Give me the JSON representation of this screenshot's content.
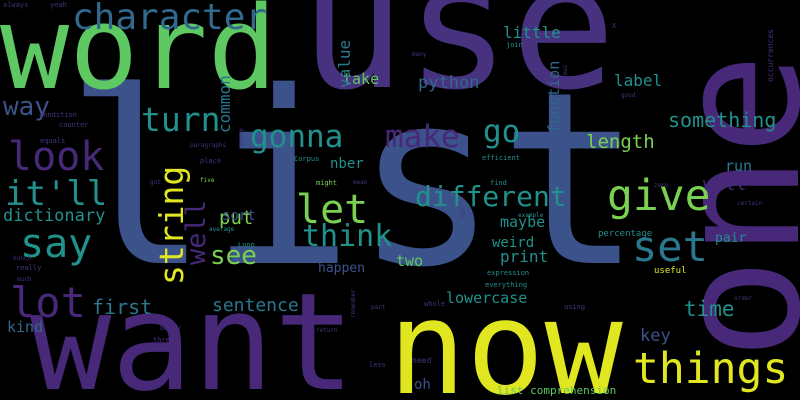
{
  "background_color": "#000000",
  "palette": {
    "dark_purple": "#46327e",
    "purple": "#482878",
    "blue": "#3b528b",
    "steel": "#31688e",
    "teal": "#21918c",
    "sea_green": "#2a788e",
    "green": "#5ec962",
    "lime": "#7ad151",
    "yellow": "#e0e620"
  },
  "words": {
    "use": "use",
    "list": "list",
    "word": "word",
    "one": "one",
    "want": "want",
    "now": "now",
    "character": "character",
    "look": "look",
    "say": "say",
    "lot": "lot",
    "things": "things",
    "give": "give",
    "set": "set",
    "let": "let",
    "think": "think",
    "gonna": "gonna",
    "make": "make",
    "go": "go",
    "turn": "turn",
    "way": "way",
    "string": "string",
    "well": "well",
    "see": "see",
    "it_ll": "it'll",
    "different": "different",
    "dictionary": "dictionary",
    "put": "put",
    "sort": "sort",
    "first": "first",
    "sentence": "sentence",
    "kind": "kind",
    "time": "time",
    "key": "key",
    "little": "little",
    "python": "python",
    "label": "label",
    "length": "length",
    "something": "something",
    "take": "take",
    "common": "common",
    "value": "value",
    "function": "function",
    "will": "will",
    "run": "run",
    "pair": "pair",
    "maybe": "maybe",
    "weird": "weird",
    "print": "print",
    "two": "two",
    "happen": "happen",
    "lowercase": "lowercase",
    "oh": "oh",
    "list_comprehension": "list comprehension",
    "nber": "nber",
    "percentage": "percentage",
    "useful": "useful",
    "occurrences": "occurrences",
    "condition": "condition",
    "always": "always",
    "yeah": "yeah",
    "equals": "equals",
    "counter": "counter",
    "paragraphs": "paragraphs",
    "every": "every",
    "place": "place",
    "corpus": "Corpus",
    "might": "might",
    "mean": "mean",
    "efficient": "efficient",
    "find": "find",
    "example": "example",
    "zero": "zero",
    "certain": "certain",
    "unique": "unique",
    "many": "many",
    "join": "join",
    "x": "X",
    "various": "various",
    "good": "good",
    "got": "got",
    "five": "five",
    "average": "average",
    "loop": "Loop",
    "bunch": "bunch",
    "really": "really",
    "much": "much",
    "better": "better",
    "three": "three",
    "return": "return",
    "remember": "remember",
    "need": "need",
    "less": "less",
    "whole": "whole",
    "using": "using",
    "expression": "expression",
    "everything": "everything",
    "brown": "brown",
    "order": "order",
    "part": "part",
    "for": "for"
  }
}
